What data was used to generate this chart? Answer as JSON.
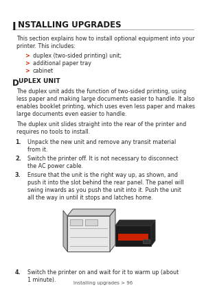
{
  "bg_color": "#ffffff",
  "title_I": "I",
  "title_rest": "nstalling upgrades",
  "section_I": "D",
  "section_rest": "uplex unit",
  "intro_text": "This section explains how to install optional equipment into your\nprinter. This includes:",
  "bullets": [
    "duplex (two-sided printing) unit;",
    "additional paper tray",
    "cabinet"
  ],
  "para1_lines": [
    "The duplex unit adds the function of two-sided printing, using",
    "less paper and making large documents easier to handle. It also",
    "enables booklet printing, which uses even less paper and makes",
    "large documents even easier to handle."
  ],
  "para2_lines": [
    "The duplex unit slides straight into the rear of the printer and",
    "requires no tools to install."
  ],
  "steps": [
    [
      "Unpack the new unit and remove any transit material",
      "from it."
    ],
    [
      "Switch the printer off. It is not necessary to disconnect",
      "the AC power cable."
    ],
    [
      "Ensure that the unit is the right way up, as shown, and",
      "push it into the slot behind the rear panel. The panel will",
      "swing inwards as you push the unit into it. Push the unit",
      "all the way in until it stops and latches home."
    ],
    [
      "Switch the printer on and wait for it to warm up (about",
      "1 minute)."
    ]
  ],
  "footer": "Installing upgrades > 96",
  "red_color": "#cc2200",
  "text_color": "#2a2a2a",
  "title_color": "#1a1a1a"
}
